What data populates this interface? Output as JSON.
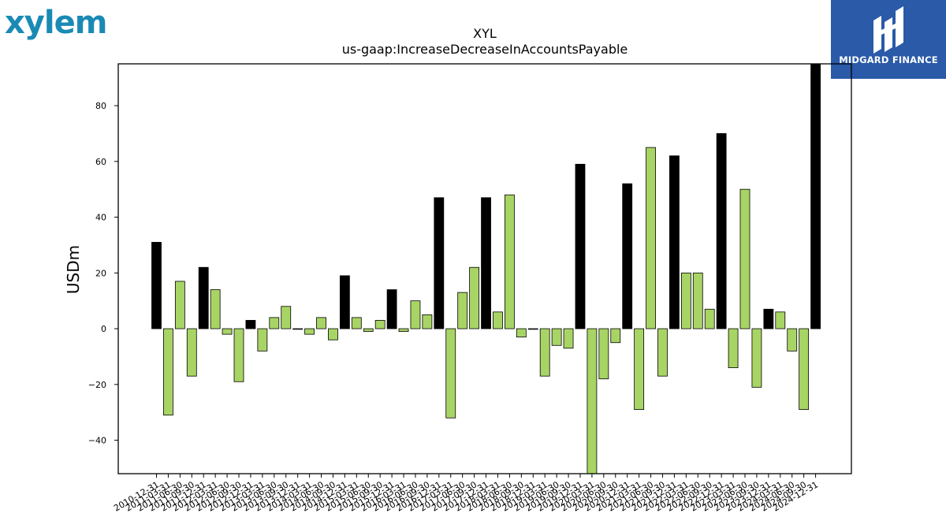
{
  "logos": {
    "left_text": "xylem",
    "right_text": "MIDGARD FINANCE"
  },
  "chart_data": {
    "type": "bar",
    "title": "XYL",
    "subtitle": "us-gaap:IncreaseDecreaseInAccountsPayable",
    "xlabel": "",
    "ylabel": "USDm",
    "ylim": [
      -52,
      95
    ],
    "yticks": [
      -40,
      -20,
      0,
      20,
      40,
      60,
      80
    ],
    "grid": false,
    "colors": {
      "annual": "#000000",
      "quarterly": "#a8d465",
      "edge": "#000000"
    },
    "categories": [
      "2010-12-31",
      "2011-03-31",
      "2011-06-30",
      "2011-09-30",
      "2011-12-31",
      "2012-03-31",
      "2012-06-30",
      "2012-09-30",
      "2012-12-31",
      "2013-03-31",
      "2013-06-30",
      "2013-09-30",
      "2013-12-31",
      "2014-03-31",
      "2014-06-30",
      "2014-09-30",
      "2014-12-31",
      "2015-03-31",
      "2015-06-30",
      "2015-09-30",
      "2015-12-31",
      "2016-03-31",
      "2016-06-30",
      "2016-09-30",
      "2016-12-31",
      "2017-03-31",
      "2017-06-30",
      "2017-09-30",
      "2017-12-31",
      "2018-03-31",
      "2018-06-30",
      "2018-09-30",
      "2018-12-31",
      "2019-03-31",
      "2019-06-30",
      "2019-09-30",
      "2019-12-31",
      "2020-03-31",
      "2020-06-30",
      "2020-09-30",
      "2020-12-31",
      "2021-03-31",
      "2021-06-30",
      "2021-09-30",
      "2021-12-31",
      "2022-03-31",
      "2022-06-30",
      "2022-09-30",
      "2022-12-31",
      "2023-03-31",
      "2023-06-30",
      "2023-09-30",
      "2023-12-31",
      "2024-03-31",
      "2024-06-30",
      "2024-09-30",
      "2024-12-31"
    ],
    "values": [
      31,
      -31,
      17,
      -17,
      22,
      14,
      -2,
      -19,
      3,
      -8,
      4,
      8,
      0,
      -2,
      4,
      -4,
      19,
      4,
      -1,
      3,
      14,
      -1,
      10,
      5,
      47,
      -32,
      13,
      22,
      47,
      6,
      48,
      -3,
      0,
      -17,
      -6,
      -7,
      59,
      -60,
      -18,
      -5,
      52,
      -29,
      65,
      -17,
      62,
      20,
      20,
      7,
      70,
      -14,
      50,
      -21,
      7,
      6,
      -8,
      -29,
      100
    ],
    "period_type": [
      "annual",
      "quarterly",
      "quarterly",
      "quarterly",
      "annual",
      "quarterly",
      "quarterly",
      "quarterly",
      "annual",
      "quarterly",
      "quarterly",
      "quarterly",
      "annual",
      "quarterly",
      "quarterly",
      "quarterly",
      "annual",
      "quarterly",
      "quarterly",
      "quarterly",
      "annual",
      "quarterly",
      "quarterly",
      "quarterly",
      "annual",
      "quarterly",
      "quarterly",
      "quarterly",
      "annual",
      "quarterly",
      "quarterly",
      "quarterly",
      "annual",
      "quarterly",
      "quarterly",
      "quarterly",
      "annual",
      "quarterly",
      "quarterly",
      "quarterly",
      "annual",
      "quarterly",
      "quarterly",
      "quarterly",
      "annual",
      "quarterly",
      "quarterly",
      "quarterly",
      "annual",
      "quarterly",
      "quarterly",
      "quarterly",
      "annual",
      "quarterly",
      "quarterly",
      "quarterly",
      "annual"
    ]
  }
}
